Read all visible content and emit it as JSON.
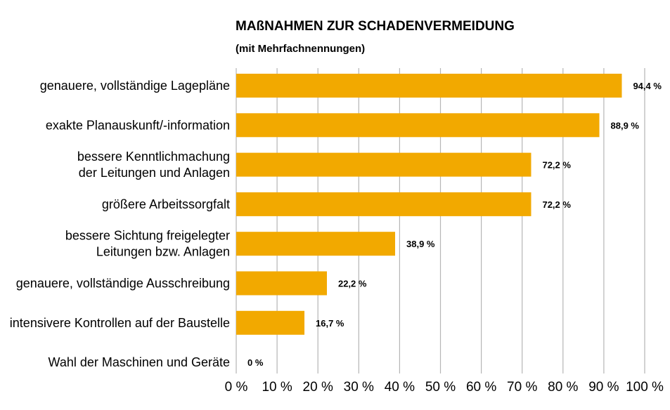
{
  "chart_data": {
    "type": "bar",
    "orientation": "horizontal",
    "title": "MAßNAHMEN ZUR SCHADENVERMEIDUNG",
    "subtitle": "(mit Mehrfachnennungen)",
    "categories": [
      [
        "genauere, vollständige Lagepläne"
      ],
      [
        "exakte Planauskunft/-information"
      ],
      [
        "bessere Kenntlichmachung",
        "der Leitungen und Anlagen"
      ],
      [
        "größere Arbeitssorgfalt"
      ],
      [
        "bessere Sichtung freigelegter",
        "Leitungen bzw. Anlagen"
      ],
      [
        "genauere, vollständige Ausschreibung"
      ],
      [
        "intensivere Kontrollen auf der Baustelle"
      ],
      [
        "Wahl der Maschinen und Geräte"
      ]
    ],
    "values": [
      94.4,
      88.9,
      72.2,
      72.2,
      38.9,
      22.2,
      16.7,
      0
    ],
    "value_labels": [
      "94,4 %",
      "88,9 %",
      "72,2 %",
      "72,2 %",
      "38,9 %",
      "22,2 %",
      "16,7 %",
      "0 %"
    ],
    "xlim": [
      0,
      100
    ],
    "ticks": [
      0,
      10,
      20,
      30,
      40,
      50,
      60,
      70,
      80,
      90,
      100
    ],
    "tick_labels": [
      "0 %",
      "10 %",
      "20 %",
      "30 %",
      "40 %",
      "50 %",
      "60 %",
      "70 %",
      "80 %",
      "90 %",
      "100 %"
    ],
    "grid": "vertical",
    "bar_color": "#f2a900"
  }
}
